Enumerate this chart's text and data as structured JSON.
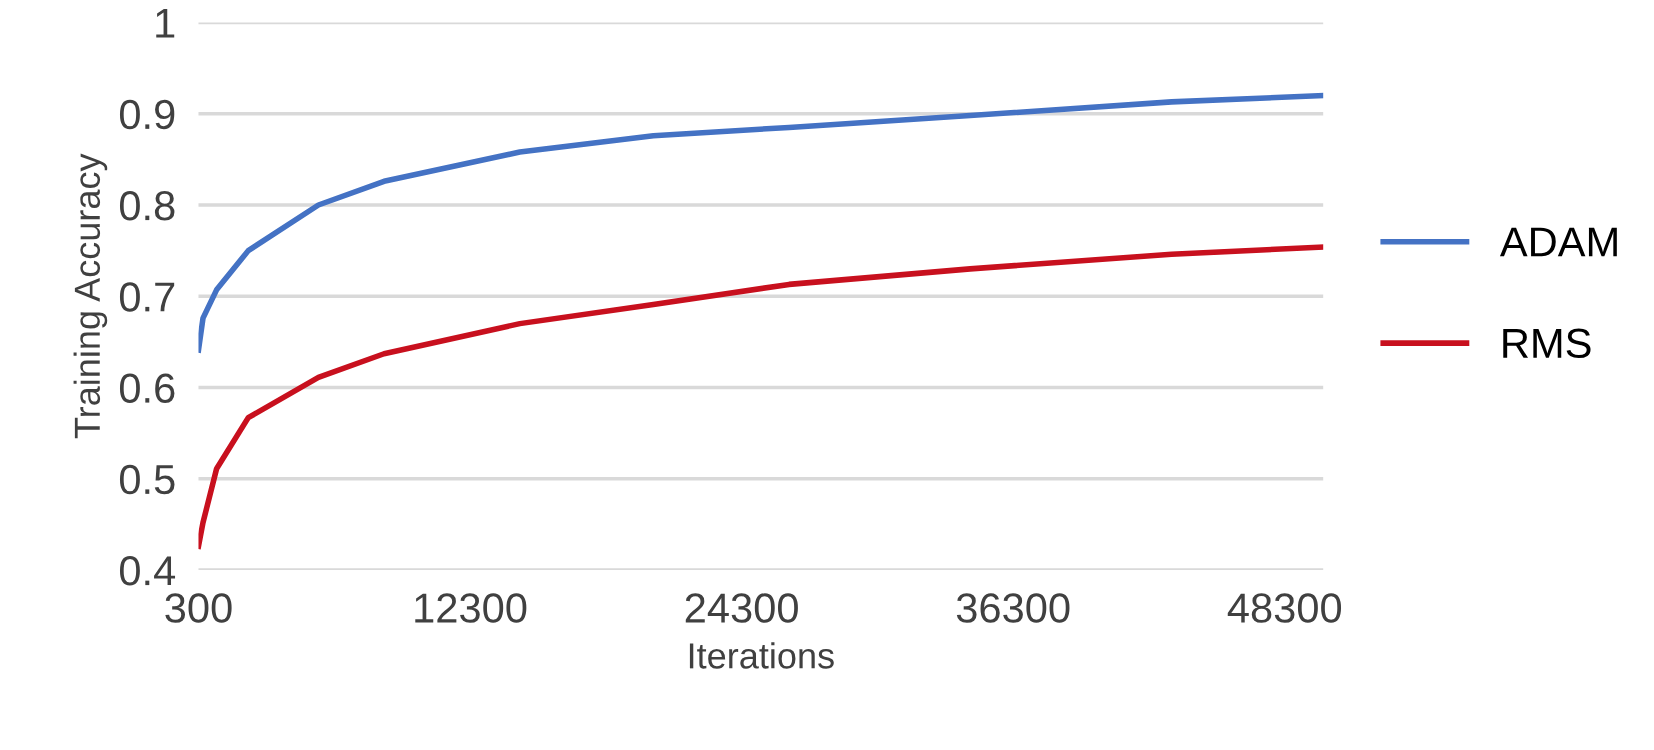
{
  "chart_data": {
    "type": "line",
    "xlabel": "Iterations",
    "ylabel": "Training Accuracy",
    "x": [
      300,
      500,
      1100,
      2500,
      5600,
      8500,
      14500,
      20400,
      26400,
      34400,
      43300,
      50000
    ],
    "series": [
      {
        "name": "ADAM",
        "color": "#4472c4",
        "values": [
          0.641,
          0.676,
          0.707,
          0.75,
          0.8,
          0.826,
          0.858,
          0.876,
          0.885,
          0.898,
          0.913,
          0.92
        ]
      },
      {
        "name": "RMS",
        "color": "#c8101e",
        "values": [
          0.426,
          0.452,
          0.511,
          0.567,
          0.611,
          0.637,
          0.67,
          0.691,
          0.713,
          0.73,
          0.746,
          0.754
        ]
      }
    ],
    "xlim": [
      300,
      50000
    ],
    "xticks": [
      300,
      12300,
      24300,
      36300,
      48300
    ],
    "ylim": [
      0.4,
      1
    ],
    "yticks": [
      0.4,
      0.5,
      0.6,
      0.7,
      0.8,
      0.9,
      1
    ],
    "grid": "y",
    "legend": "right",
    "marker": "none",
    "line_style": "solid"
  }
}
